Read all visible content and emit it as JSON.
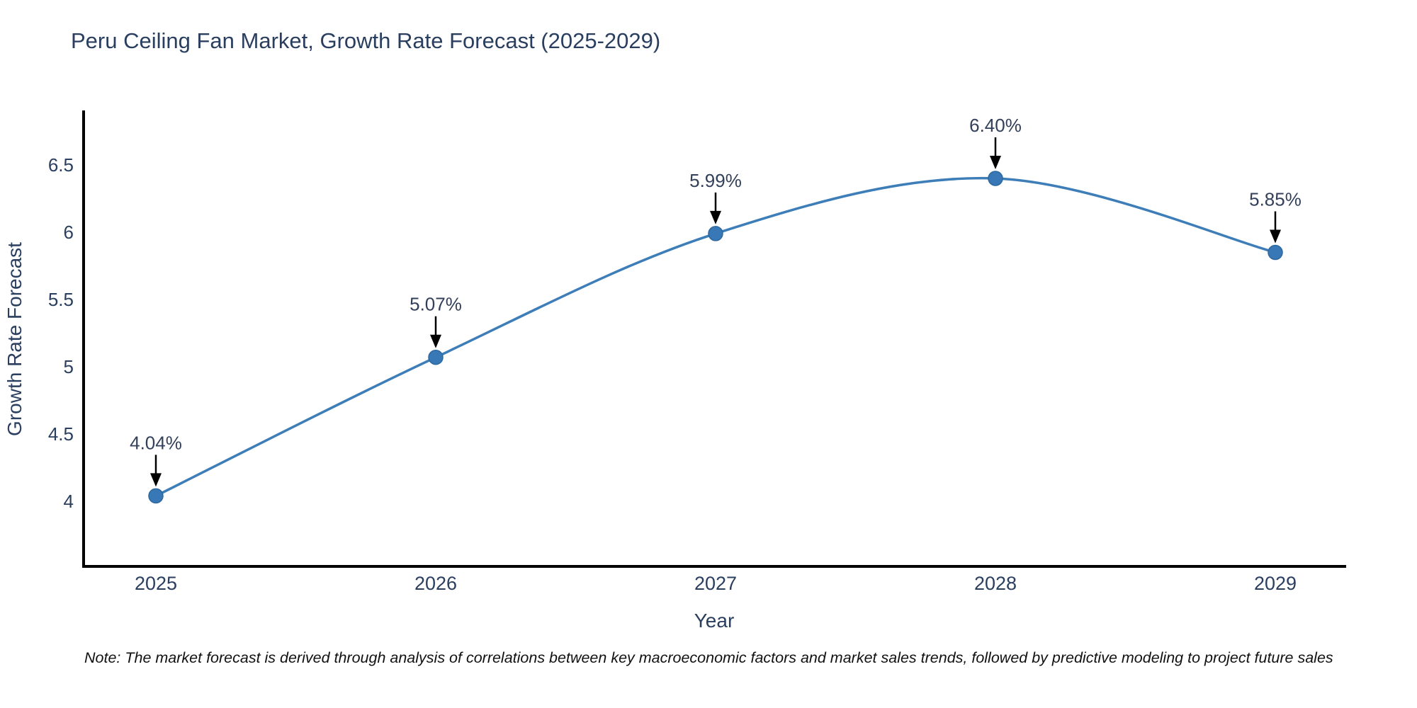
{
  "title": "Peru Ceiling Fan Market, Growth Rate Forecast (2025-2029)",
  "note": "Note: The market forecast is derived through analysis of correlations between key macroeconomic factors and market sales trends, followed by predictive modeling to project future sales",
  "chart_data": {
    "type": "line",
    "title": "Peru Ceiling Fan Market, Growth Rate Forecast (2025-2029)",
    "xlabel": "Year",
    "ylabel": "Growth Rate Forecast",
    "x": [
      2025,
      2026,
      2027,
      2028,
      2029
    ],
    "values": [
      4.04,
      5.07,
      5.99,
      6.4,
      5.85
    ],
    "point_labels": [
      "4.04%",
      "5.07%",
      "5.99%",
      "6.40%",
      "5.85%"
    ],
    "yticks": [
      4,
      4.5,
      5,
      5.5,
      6,
      6.5
    ],
    "ylim": [
      3.52,
      6.9
    ],
    "grid": false,
    "legend": false,
    "line_smoothing": "spline",
    "colors": {
      "line": "#3d7db8",
      "marker_fill": "#3878b6",
      "marker_edge": "#2d689e",
      "axis_line": "#000000",
      "tick_label": "#2a3f5f",
      "axis_title": "#2a3f5f",
      "annotation_text": "#33405a",
      "annotation_arrow": "#000000"
    }
  }
}
